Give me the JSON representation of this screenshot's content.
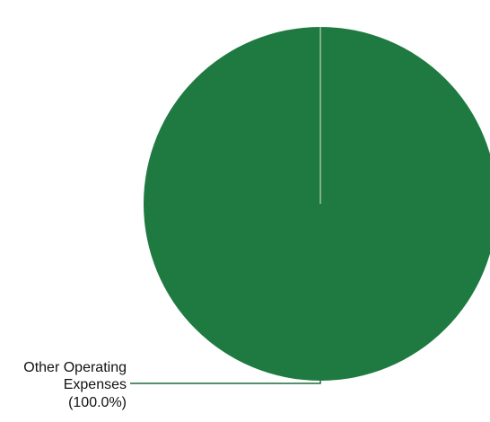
{
  "chart_data": {
    "type": "pie",
    "title": "",
    "slices": [
      {
        "label_lines": [
          "Other Operating",
          "Expenses",
          "(100.0%)"
        ],
        "category": "Other Operating Expenses",
        "value": 100.0,
        "percent_label": "(100.0%)",
        "color": "#1e7a40"
      }
    ],
    "legend": "none",
    "labels": "outside-left with leader line"
  },
  "colors": {
    "slice_fill": "#1e7a40",
    "leader_line": "#1e6b3a",
    "slice_edge": "#dfe8d8",
    "label_text": "#111111"
  }
}
